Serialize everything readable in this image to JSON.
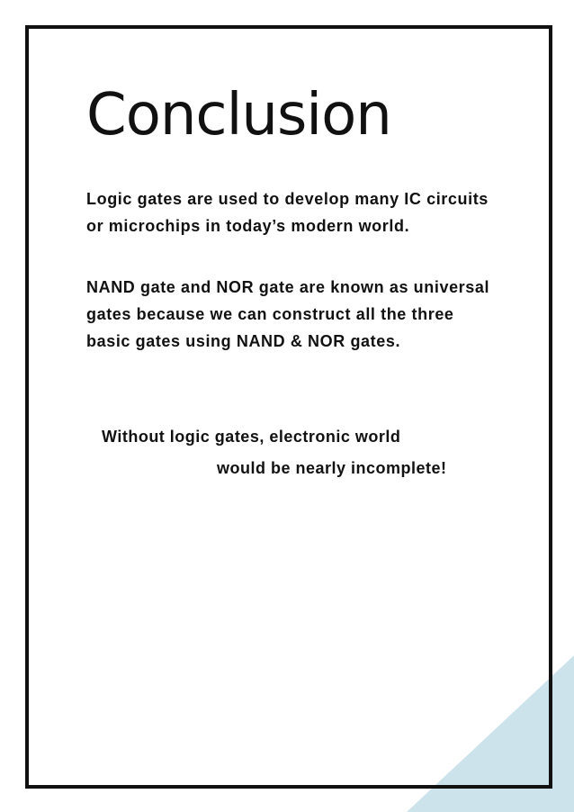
{
  "accent_color": "#cde3ec",
  "frame_color": "#111111",
  "title": "Conclusion",
  "paragraphs": [
    "Logic gates are used to develop many IC circuits or microchips in today’s modern world.",
    "NAND gate and NOR gate are known as universal gates because we can construct all the three basic gates using NAND & NOR gates."
  ],
  "closing_quote": {
    "line1": "Without logic gates, electronic world",
    "line2": "would be nearly incomplete!"
  }
}
